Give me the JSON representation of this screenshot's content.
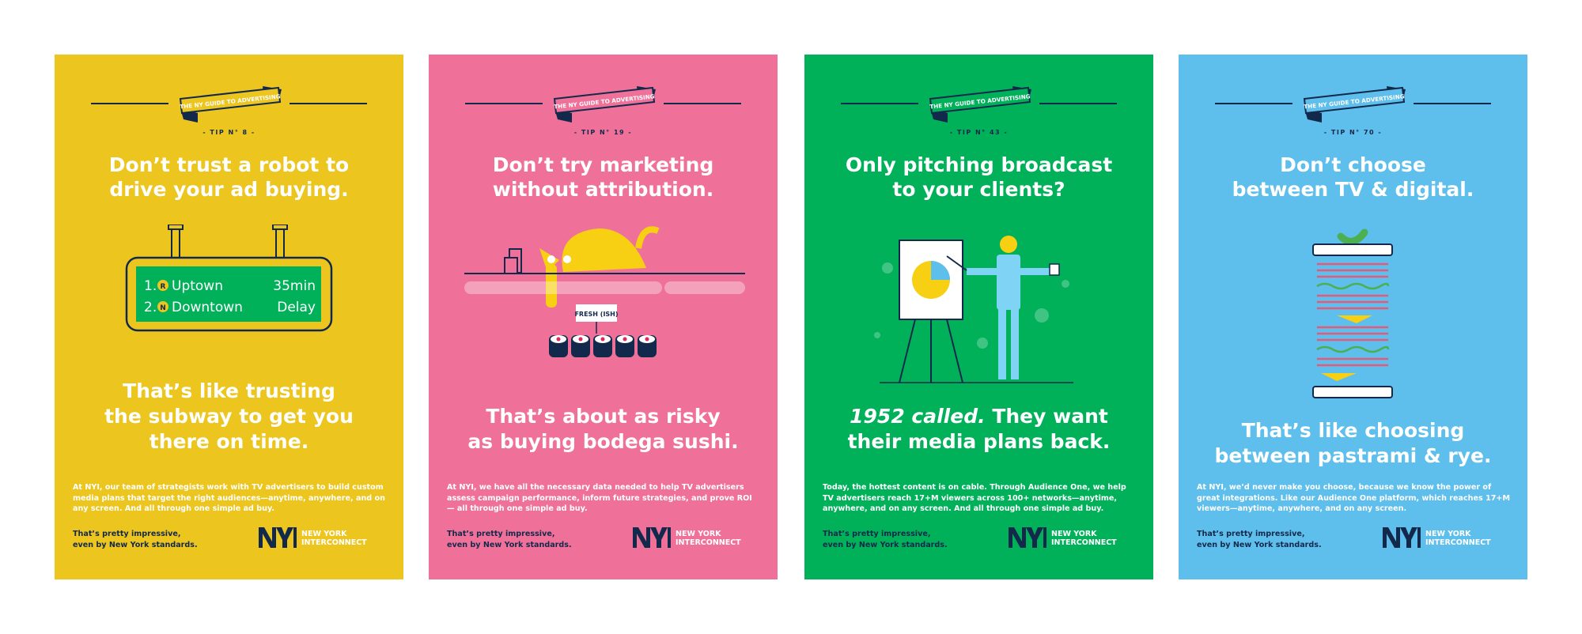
{
  "colors": {
    "yellow": "#ecc51f",
    "pink": "#ef7199",
    "green": "#00b15a",
    "blue": "#5ebeec",
    "navy": "#13294b"
  },
  "posters": [
    {
      "ribbon": "THE NY GUIDE TO ADVERTISING",
      "tip": "- TIP N° 8 -",
      "headline": [
        "Don’t trust a robot to",
        "drive your ad buying."
      ],
      "sign": {
        "row1": {
          "num": "1.",
          "line": "R",
          "dest": "Uptown",
          "status": "35min"
        },
        "row2": {
          "num": "2.",
          "line": "N",
          "dest": "Downtown",
          "status": "Delay"
        }
      },
      "subhead": [
        "That’s like trusting",
        "the subway to get you",
        "there on time."
      ],
      "body": "At NYI, our team of strategists work with TV advertisers to build custom media plans that target the right audiences—anytime, anywhere, and on any screen. And all through one simple ad buy.",
      "tagline": [
        "That’s pretty impressive,",
        "even by New York standards."
      ],
      "logo": {
        "mark": "NYI",
        "name": [
          "NEW YORK",
          "INTERCONNECT"
        ]
      }
    },
    {
      "ribbon": "THE NY GUIDE TO ADVERTISING",
      "tip": "- TIP N° 19 -",
      "headline": [
        "Don’t try marketing",
        "without attribution."
      ],
      "label": "FRESH (ISH)",
      "subhead": [
        "That’s about as risky",
        "as buying bodega sushi."
      ],
      "body": "At NYI, we have all the necessary data needed to help TV advertisers assess campaign performance, inform future strategies, and prove ROI — all through one simple ad buy.",
      "tagline": [
        "That’s pretty impressive,",
        "even by New York standards."
      ],
      "logo": {
        "mark": "NYI",
        "name": [
          "NEW YORK",
          "INTERCONNECT"
        ]
      }
    },
    {
      "ribbon": "THE NY GUIDE TO ADVERTISING",
      "tip": "- TIP N° 43 -",
      "headline": [
        "Only pitching broadcast",
        "to your clients?"
      ],
      "subhead_em": "1952 called.",
      "subhead": [
        "They want",
        "their media plans back."
      ],
      "body": "Today, the hottest content is on cable.  Through Audience One, we help TV advertisers reach 17+M viewers across 100+ networks—anytime, anywhere, and on any screen. And all through one simple ad buy.",
      "tagline": [
        "That’s pretty impressive,",
        "even by New York standards."
      ],
      "logo": {
        "mark": "NYI",
        "name": [
          "NEW YORK",
          "INTERCONNECT"
        ]
      }
    },
    {
      "ribbon": "THE NY GUIDE TO ADVERTISING",
      "tip": "- TIP N° 70 -",
      "headline": [
        "Don’t choose",
        "between TV & digital."
      ],
      "subhead": [
        "That’s like choosing",
        "between pastrami & rye."
      ],
      "body": "At NYI, we’d never make you choose, because we know the power of great integrations. Like our Audience One platform, which reaches 17+M viewers—anytime, anywhere, and on any screen.",
      "tagline": [
        "That’s pretty impressive,",
        "even by New York standards."
      ],
      "logo": {
        "mark": "NYI",
        "name": [
          "NEW YORK",
          "INTERCONNECT"
        ]
      }
    }
  ]
}
